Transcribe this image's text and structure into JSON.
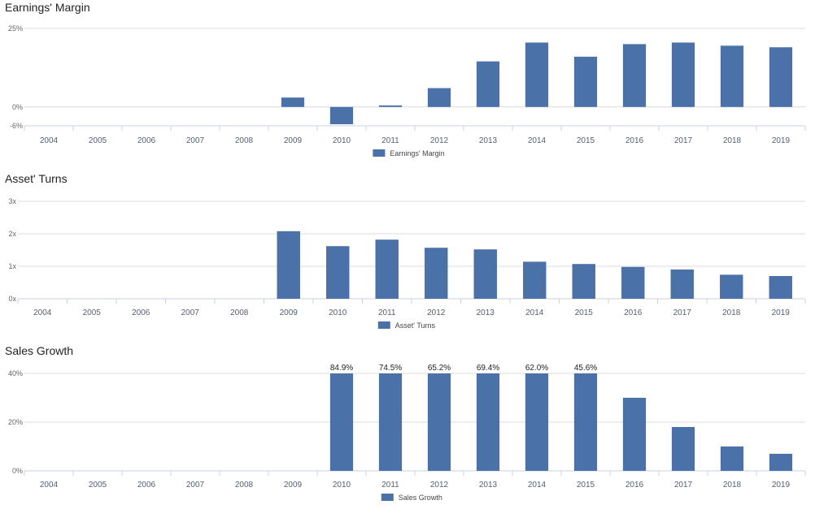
{
  "chart_data": [
    {
      "type": "bar",
      "title": "Earnings' Margin",
      "categories": [
        "2004",
        "2005",
        "2006",
        "2007",
        "2008",
        "2009",
        "2010",
        "2011",
        "2012",
        "2013",
        "2014",
        "2015",
        "2016",
        "2017",
        "2018",
        "2019"
      ],
      "series": [
        {
          "name": "Earnings' Margin",
          "values": [
            null,
            null,
            null,
            null,
            null,
            3.0,
            -5.5,
            0.5,
            6.0,
            14.5,
            20.5,
            16.0,
            20.0,
            20.5,
            19.5,
            19.0
          ]
        }
      ],
      "yticks": [
        {
          "value": 25,
          "label": "25%"
        },
        {
          "value": 0,
          "label": "0%"
        },
        {
          "value": -6,
          "label": "-6%"
        }
      ],
      "ylim": [
        -6,
        25
      ],
      "grid": true,
      "legend": "bottom",
      "color": "#4a72a8"
    },
    {
      "type": "bar",
      "title": "Asset' Turns",
      "categories": [
        "2004",
        "2005",
        "2006",
        "2007",
        "2008",
        "2009",
        "2010",
        "2011",
        "2012",
        "2013",
        "2014",
        "2015",
        "2016",
        "2017",
        "2018",
        "2019"
      ],
      "series": [
        {
          "name": "Asset' Turns",
          "values": [
            null,
            null,
            null,
            null,
            null,
            2.08,
            1.62,
            1.82,
            1.57,
            1.52,
            1.14,
            1.07,
            0.98,
            0.9,
            0.74,
            0.7
          ]
        }
      ],
      "yticks": [
        {
          "value": 3,
          "label": "3x"
        },
        {
          "value": 2,
          "label": "2x"
        },
        {
          "value": 1,
          "label": "1x"
        },
        {
          "value": 0,
          "label": "0x"
        }
      ],
      "ylim": [
        0,
        3
      ],
      "grid": true,
      "legend": "bottom",
      "color": "#4a72a8"
    },
    {
      "type": "bar",
      "title": "Sales Growth",
      "categories": [
        "2004",
        "2005",
        "2006",
        "2007",
        "2008",
        "2009",
        "2010",
        "2011",
        "2012",
        "2013",
        "2014",
        "2015",
        "2016",
        "2017",
        "2018",
        "2019"
      ],
      "series": [
        {
          "name": "Sales Growth",
          "values": [
            null,
            null,
            null,
            null,
            null,
            null,
            84.9,
            74.5,
            65.2,
            69.4,
            62.0,
            45.6,
            30.0,
            18.0,
            10.0,
            7.0
          ],
          "data_labels": [
            null,
            null,
            null,
            null,
            null,
            null,
            "84.9%",
            "74.5%",
            "65.2%",
            "69.4%",
            "62.0%",
            "45.6%",
            null,
            null,
            null,
            null
          ]
        }
      ],
      "yticks": [
        {
          "value": 40,
          "label": "40%"
        },
        {
          "value": 20,
          "label": "20%"
        },
        {
          "value": 0,
          "label": "0%"
        }
      ],
      "ylim": [
        0,
        40
      ],
      "clipped_at_ymax": true,
      "grid": true,
      "legend": "bottom",
      "color": "#4a72a8"
    }
  ]
}
